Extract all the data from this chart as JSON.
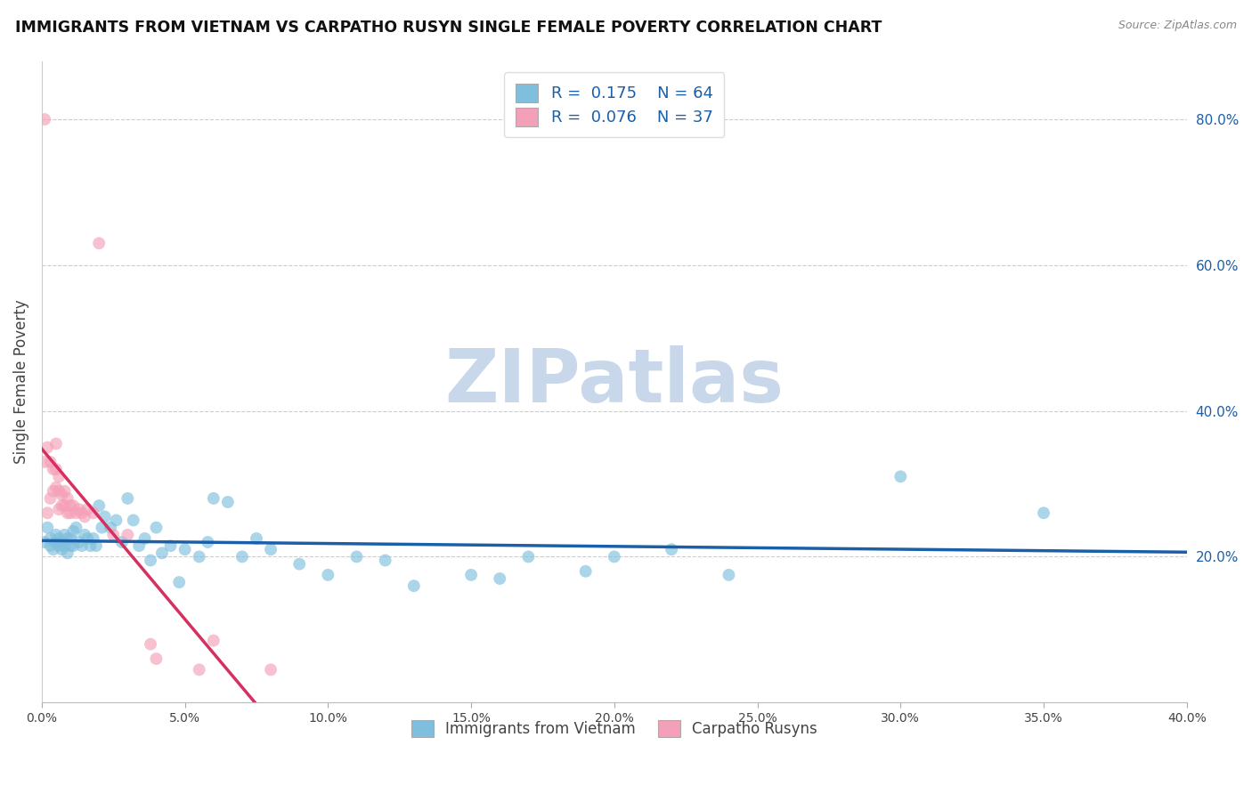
{
  "title": "IMMIGRANTS FROM VIETNAM VS CARPATHO RUSYN SINGLE FEMALE POVERTY CORRELATION CHART",
  "source": "Source: ZipAtlas.com",
  "ylabel": "Single Female Poverty",
  "legend_label1": "Immigrants from Vietnam",
  "legend_label2": "Carpatho Rusyns",
  "R1": 0.175,
  "N1": 64,
  "R2": 0.076,
  "N2": 37,
  "xlim": [
    0.0,
    0.4
  ],
  "ylim": [
    0.0,
    0.88
  ],
  "color_blue": "#7fbfdd",
  "color_pink": "#f4a0b8",
  "color_line_blue": "#1a5fa8",
  "color_line_pink": "#d63060",
  "color_line_pink_dashed": "#e08090",
  "watermark": "ZIPatlas",
  "watermark_color": "#c8d8ea",
  "background_color": "#ffffff",
  "vietnam_x": [
    0.001,
    0.002,
    0.003,
    0.003,
    0.004,
    0.005,
    0.005,
    0.006,
    0.006,
    0.007,
    0.007,
    0.008,
    0.008,
    0.009,
    0.009,
    0.01,
    0.01,
    0.011,
    0.011,
    0.012,
    0.013,
    0.014,
    0.015,
    0.016,
    0.017,
    0.018,
    0.019,
    0.02,
    0.021,
    0.022,
    0.024,
    0.026,
    0.028,
    0.03,
    0.032,
    0.034,
    0.036,
    0.038,
    0.04,
    0.042,
    0.045,
    0.048,
    0.05,
    0.055,
    0.058,
    0.06,
    0.065,
    0.07,
    0.075,
    0.08,
    0.09,
    0.1,
    0.11,
    0.12,
    0.13,
    0.15,
    0.16,
    0.17,
    0.19,
    0.2,
    0.22,
    0.24,
    0.3,
    0.35
  ],
  "vietnam_y": [
    0.22,
    0.24,
    0.215,
    0.225,
    0.21,
    0.23,
    0.22,
    0.215,
    0.225,
    0.21,
    0.22,
    0.215,
    0.23,
    0.205,
    0.225,
    0.215,
    0.225,
    0.235,
    0.215,
    0.24,
    0.22,
    0.215,
    0.23,
    0.225,
    0.215,
    0.225,
    0.215,
    0.27,
    0.24,
    0.255,
    0.24,
    0.25,
    0.22,
    0.28,
    0.25,
    0.215,
    0.225,
    0.195,
    0.24,
    0.205,
    0.215,
    0.165,
    0.21,
    0.2,
    0.22,
    0.28,
    0.275,
    0.2,
    0.225,
    0.21,
    0.19,
    0.175,
    0.2,
    0.195,
    0.16,
    0.175,
    0.17,
    0.2,
    0.18,
    0.2,
    0.21,
    0.175,
    0.31,
    0.26
  ],
  "rusyn_x": [
    0.001,
    0.001,
    0.002,
    0.002,
    0.003,
    0.003,
    0.004,
    0.004,
    0.005,
    0.005,
    0.005,
    0.006,
    0.006,
    0.006,
    0.007,
    0.007,
    0.008,
    0.008,
    0.009,
    0.009,
    0.01,
    0.01,
    0.011,
    0.012,
    0.013,
    0.014,
    0.015,
    0.016,
    0.018,
    0.02,
    0.025,
    0.03,
    0.038,
    0.04,
    0.055,
    0.06,
    0.08
  ],
  "rusyn_y": [
    0.8,
    0.33,
    0.26,
    0.35,
    0.28,
    0.33,
    0.29,
    0.32,
    0.32,
    0.295,
    0.355,
    0.265,
    0.29,
    0.31,
    0.27,
    0.285,
    0.27,
    0.29,
    0.26,
    0.28,
    0.26,
    0.27,
    0.27,
    0.26,
    0.265,
    0.26,
    0.255,
    0.265,
    0.26,
    0.63,
    0.23,
    0.23,
    0.08,
    0.06,
    0.045,
    0.085,
    0.045
  ],
  "xtick_vals": [
    0.0,
    0.05,
    0.1,
    0.15,
    0.2,
    0.25,
    0.3,
    0.35,
    0.4
  ],
  "xtick_labels": [
    "0.0%",
    "5.0%",
    "10.0%",
    "15.0%",
    "20.0%",
    "25.0%",
    "30.0%",
    "35.0%",
    "40.0%"
  ],
  "ytick_right_vals": [
    0.2,
    0.4,
    0.6,
    0.8
  ],
  "ytick_right_labels": [
    "20.0%",
    "40.0%",
    "60.0%",
    "80.0%"
  ],
  "grid_yticks": [
    0.0,
    0.2,
    0.4,
    0.6,
    0.8
  ]
}
